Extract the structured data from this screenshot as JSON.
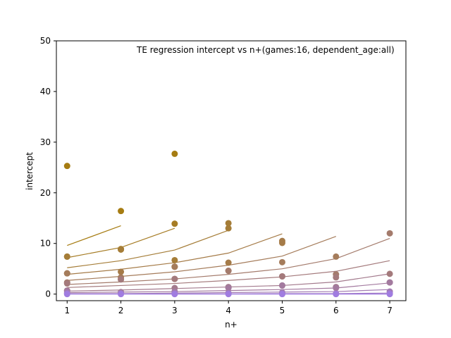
{
  "chart_data": {
    "type": "scatter",
    "title": "TE regression intercept vs n+(games:16, dependent_age:all)",
    "xlabel": "n+",
    "ylabel": "intercept",
    "xlim": [
      0.8,
      7.3
    ],
    "ylim": [
      -1.3,
      50
    ],
    "xticks": [
      1,
      2,
      3,
      4,
      5,
      6,
      7
    ],
    "yticks": [
      0,
      10,
      20,
      30,
      40,
      50
    ],
    "grid": false,
    "series": [
      {
        "color": "#a67c12",
        "points": [
          [
            1,
            25.3
          ],
          [
            2,
            16.4
          ],
          [
            3,
            27.7
          ]
        ],
        "fit": [
          [
            1,
            9.6
          ],
          [
            2,
            13.5
          ]
        ]
      },
      {
        "color": "#a67c25",
        "points": [
          [
            1,
            7.4
          ],
          [
            2,
            8.8
          ],
          [
            2,
            8.9
          ],
          [
            3,
            13.9
          ]
        ],
        "fit": [
          [
            1,
            7.2
          ],
          [
            2,
            9.2
          ],
          [
            3,
            13.0
          ]
        ]
      },
      {
        "color": "#a57d38",
        "points": [
          [
            1,
            7.4
          ],
          [
            2,
            8.8
          ],
          [
            3,
            6.7
          ],
          [
            3,
            5.4
          ],
          [
            4,
            14.0
          ],
          [
            4,
            13.0
          ]
        ],
        "fit": [
          [
            1,
            5.2
          ],
          [
            2,
            6.6
          ],
          [
            3,
            8.7
          ],
          [
            4,
            12.6
          ]
        ]
      },
      {
        "color": "#a57b48",
        "points": [
          [
            1,
            4.1
          ],
          [
            2,
            4.4
          ],
          [
            3,
            5.4
          ],
          [
            4,
            6.2
          ],
          [
            5,
            10.5
          ],
          [
            5,
            10.1
          ]
        ],
        "fit": [
          [
            1,
            3.9
          ],
          [
            2,
            4.9
          ],
          [
            3,
            6.2
          ],
          [
            4,
            8.1
          ],
          [
            5,
            11.9
          ]
        ]
      },
      {
        "color": "#a57c5b",
        "points": [
          [
            1,
            4.1
          ],
          [
            2,
            3.3
          ],
          [
            3,
            5.4
          ],
          [
            4,
            4.6
          ],
          [
            5,
            6.3
          ],
          [
            6,
            7.4
          ]
        ],
        "fit": [
          [
            1,
            2.7
          ],
          [
            2,
            3.5
          ],
          [
            3,
            4.4
          ],
          [
            4,
            5.7
          ],
          [
            5,
            7.5
          ],
          [
            6,
            11.4
          ]
        ]
      },
      {
        "color": "#a47b6c",
        "points": [
          [
            1,
            2.3
          ],
          [
            2,
            2.9
          ],
          [
            3,
            3.0
          ],
          [
            4,
            4.6
          ],
          [
            5,
            3.5
          ],
          [
            6,
            3.9
          ],
          [
            7,
            12.0
          ]
        ],
        "fit": [
          [
            1,
            1.9
          ],
          [
            2,
            2.4
          ],
          [
            3,
            3.0
          ],
          [
            4,
            3.9
          ],
          [
            5,
            5.0
          ],
          [
            6,
            7.0
          ],
          [
            7,
            11.0
          ]
        ]
      },
      {
        "color": "#a47a7c",
        "points": [
          [
            1,
            2.1
          ],
          [
            2,
            2.9
          ],
          [
            3,
            3.0
          ],
          [
            4,
            1.3
          ],
          [
            5,
            3.5
          ],
          [
            6,
            3.3
          ],
          [
            7,
            4.0
          ]
        ],
        "fit": [
          [
            1,
            1.3
          ],
          [
            2,
            1.7
          ],
          [
            3,
            2.1
          ],
          [
            4,
            2.7
          ],
          [
            5,
            3.4
          ],
          [
            6,
            4.5
          ],
          [
            7,
            6.6
          ]
        ]
      },
      {
        "color": "#a37a8d",
        "points": [
          [
            1,
            0.7
          ],
          [
            2,
            0.4
          ],
          [
            3,
            1.2
          ],
          [
            4,
            1.4
          ],
          [
            5,
            1.7
          ],
          [
            6,
            1.4
          ],
          [
            7,
            2.3
          ]
        ],
        "fit": [
          [
            1,
            0.6
          ],
          [
            2,
            0.8
          ],
          [
            3,
            1.1
          ],
          [
            4,
            1.4
          ],
          [
            5,
            1.7
          ],
          [
            6,
            2.4
          ],
          [
            7,
            4.0
          ]
        ]
      },
      {
        "color": "#a37a9f",
        "points": [
          [
            1,
            0.6
          ],
          [
            2,
            0.3
          ],
          [
            3,
            0.5
          ],
          [
            4,
            1.2
          ],
          [
            5,
            1.7
          ],
          [
            6,
            1.2
          ],
          [
            7,
            2.3
          ]
        ],
        "fit": [
          [
            1,
            0.3
          ],
          [
            2,
            0.4
          ],
          [
            3,
            0.5
          ],
          [
            4,
            0.7
          ],
          [
            5,
            0.9
          ],
          [
            6,
            1.2
          ],
          [
            7,
            2.2
          ]
        ]
      },
      {
        "color": "#a27bb2",
        "points": [
          [
            1,
            0.3
          ],
          [
            2,
            0.2
          ],
          [
            3,
            0.3
          ],
          [
            4,
            0.2
          ],
          [
            5,
            0.3
          ],
          [
            6,
            0.1
          ],
          [
            7,
            0.5
          ]
        ],
        "fit": [
          [
            1,
            0.1
          ],
          [
            2,
            0.1
          ],
          [
            3,
            0.2
          ],
          [
            4,
            0.3
          ],
          [
            5,
            0.4
          ],
          [
            6,
            0.5
          ],
          [
            7,
            0.9
          ]
        ]
      },
      {
        "color": "#a17ac5",
        "points": [
          [
            1,
            0.1
          ],
          [
            2,
            0.1
          ],
          [
            3,
            0.1
          ],
          [
            4,
            0.1
          ],
          [
            5,
            0.1
          ],
          [
            6,
            0.1
          ],
          [
            7,
            0.2
          ]
        ],
        "fit": [
          [
            1,
            0.05
          ],
          [
            2,
            0.05
          ],
          [
            3,
            0.05
          ],
          [
            4,
            0.05
          ],
          [
            5,
            0.1
          ],
          [
            6,
            0.1
          ],
          [
            7,
            0.2
          ]
        ]
      },
      {
        "color": "#a07ce0",
        "points": [
          [
            1,
            0.0
          ],
          [
            2,
            0.0
          ],
          [
            3,
            0.0
          ],
          [
            4,
            0.0
          ],
          [
            5,
            0.0
          ],
          [
            6,
            0.0
          ],
          [
            7,
            0.0
          ]
        ],
        "fit": [
          [
            1,
            0.0
          ],
          [
            2,
            0.0
          ],
          [
            3,
            0.0
          ],
          [
            4,
            0.0
          ],
          [
            5,
            0.0
          ],
          [
            6,
            0.0
          ],
          [
            7,
            0.0
          ]
        ]
      }
    ]
  }
}
